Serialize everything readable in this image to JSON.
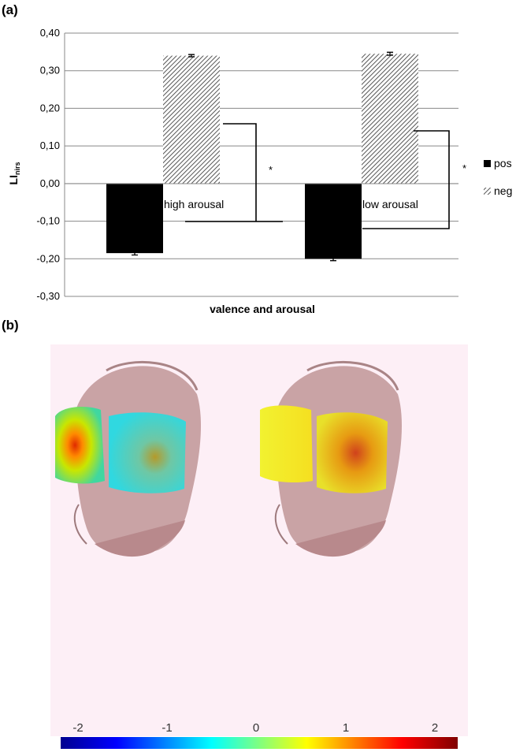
{
  "panel_a": {
    "label": "(a)"
  },
  "panel_b": {
    "label": "(b)"
  },
  "chart_data": {
    "type": "bar",
    "title": "",
    "xlabel": "valence and arousal",
    "ylabel": "LI",
    "ylabel_sub": "nirs",
    "ylim": [
      -0.3,
      0.4
    ],
    "yticks": [
      "0,40",
      "0,30",
      "0,20",
      "0,10",
      "0,00",
      "-0,10",
      "-0,20",
      "-0,30"
    ],
    "grid": true,
    "legend_position": "right",
    "categories": [
      "high arousal",
      "low arousal"
    ],
    "series": [
      {
        "name": "pos",
        "values": [
          -0.185,
          -0.2
        ],
        "errors": [
          0.005,
          0.005
        ],
        "color": "#000000"
      },
      {
        "name": "neg",
        "values": [
          0.34,
          0.345
        ],
        "errors": [
          0.003,
          0.004
        ],
        "color": "hatched"
      }
    ],
    "significance": [
      "*",
      "*"
    ]
  },
  "colorbar": {
    "ticks": [
      "-2",
      "-1",
      "0",
      "1",
      "2"
    ],
    "colormap": [
      "#00008f",
      "#0000ff",
      "#00ffff",
      "#ffff00",
      "#ff0000",
      "#800000"
    ]
  }
}
